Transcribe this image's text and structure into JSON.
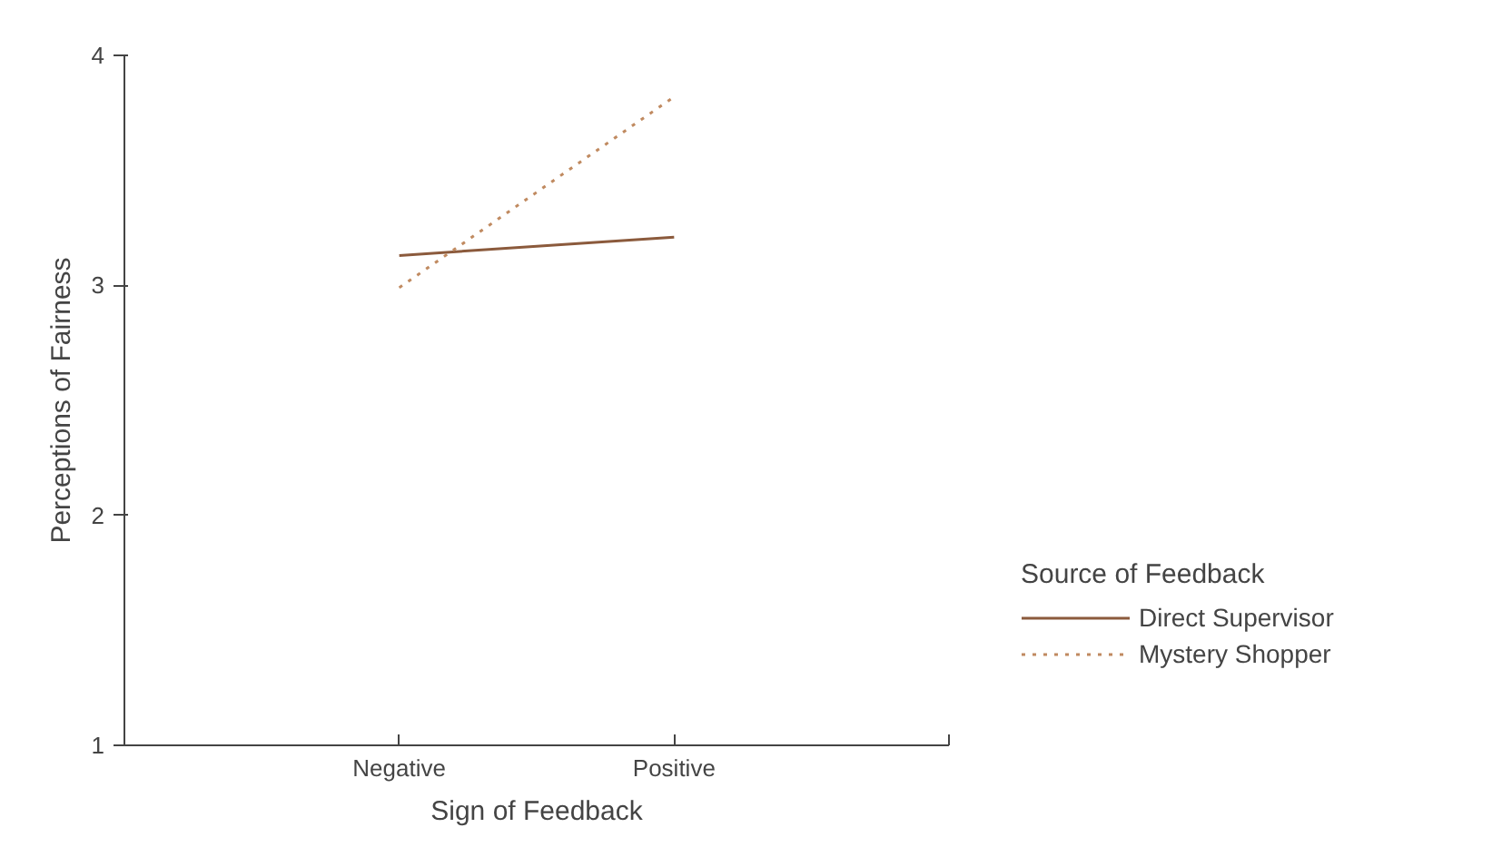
{
  "chart_data": {
    "type": "line",
    "xlabel": "Sign of Feedback",
    "ylabel": "Perceptions of Fairness",
    "legend_title": "Source of Feedback",
    "categories": [
      null,
      "Negative",
      "Positive",
      null
    ],
    "series": [
      {
        "name": "Direct Supervisor",
        "color": "#8b5a3c",
        "line_style": "solid",
        "values": [
          null,
          3.13,
          3.21,
          null
        ]
      },
      {
        "name": "Mystery Shopper",
        "color": "#c08a60",
        "line_style": "dotted",
        "values": [
          null,
          2.99,
          3.82,
          null
        ]
      }
    ],
    "ylim": [
      1,
      4
    ],
    "yticks": [
      1,
      2,
      3,
      4
    ],
    "grid": false,
    "legend": "bottom right"
  }
}
